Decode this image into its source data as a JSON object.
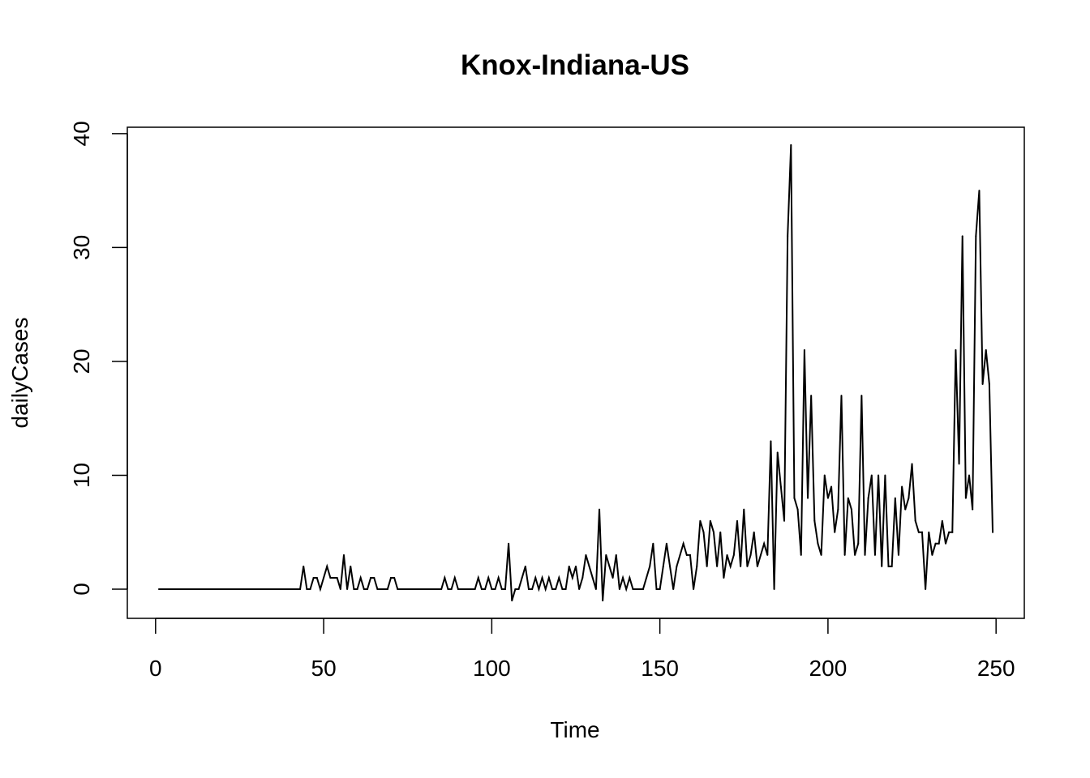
{
  "chart_data": {
    "type": "line",
    "title": "Knox-Indiana-US",
    "xlabel": "Time",
    "ylabel": "dailyCases",
    "xlim": [
      -8.4,
      258.4
    ],
    "ylim": [
      -2.56,
      40.56
    ],
    "x_ticks": [
      0,
      50,
      100,
      150,
      200,
      250
    ],
    "y_ticks": [
      0,
      10,
      20,
      30,
      40
    ],
    "x_tick_labels": [
      "0",
      "50",
      "100",
      "150",
      "200",
      "250"
    ],
    "y_tick_labels": [
      "0",
      "10",
      "20",
      "30",
      "40"
    ],
    "grid": false,
    "line_color": "#000000",
    "series": [
      {
        "x_start": 1,
        "values": [
          0,
          0,
          0,
          0,
          0,
          0,
          0,
          0,
          0,
          0,
          0,
          0,
          0,
          0,
          0,
          0,
          0,
          0,
          0,
          0,
          0,
          0,
          0,
          0,
          0,
          0,
          0,
          0,
          0,
          0,
          0,
          0,
          0,
          0,
          0,
          0,
          0,
          0,
          0,
          0,
          0,
          0,
          0,
          2,
          0,
          0,
          1,
          1,
          0,
          1,
          2,
          1,
          1,
          1,
          0,
          3,
          0,
          2,
          0,
          0,
          1,
          0,
          0,
          1,
          1,
          0,
          0,
          0,
          0,
          1,
          1,
          0,
          0,
          0,
          0,
          0,
          0,
          0,
          0,
          0,
          0,
          0,
          0,
          0,
          0,
          1,
          0,
          0,
          1,
          0,
          0,
          0,
          0,
          0,
          0,
          1,
          0,
          0,
          1,
          0,
          0,
          1,
          0,
          0,
          4,
          -1,
          0,
          0,
          1,
          2,
          0,
          0,
          1,
          0,
          1,
          0,
          1,
          0,
          0,
          1,
          0,
          0,
          2,
          1,
          2,
          0,
          1,
          3,
          2,
          1,
          0,
          7,
          -1,
          3,
          2,
          1,
          3,
          0,
          1,
          0,
          1,
          0,
          0,
          0,
          0,
          1,
          2,
          4,
          0,
          0,
          2,
          4,
          2,
          0,
          2,
          3,
          4,
          3,
          3,
          0,
          2,
          6,
          5,
          2,
          6,
          5,
          2,
          5,
          1,
          3,
          2,
          3,
          6,
          2,
          7,
          2,
          3,
          5,
          2,
          3,
          4,
          3,
          13,
          0,
          12,
          9,
          6,
          31,
          39,
          8,
          7,
          3,
          21,
          8,
          17,
          6,
          4,
          3,
          10,
          8,
          9,
          5,
          7,
          17,
          3,
          8,
          7,
          3,
          4,
          17,
          3,
          8,
          10,
          3,
          10,
          2,
          10,
          2,
          2,
          8,
          3,
          9,
          7,
          8,
          11,
          6,
          5,
          5,
          0,
          5,
          3,
          4,
          4,
          6,
          4,
          5,
          5,
          21,
          11,
          31,
          8,
          10,
          7,
          31,
          35,
          18,
          21,
          18,
          5
        ]
      }
    ]
  }
}
